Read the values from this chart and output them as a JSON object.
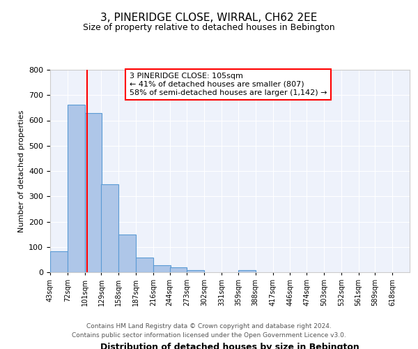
{
  "title": "3, PINERIDGE CLOSE, WIRRAL, CH62 2EE",
  "subtitle": "Size of property relative to detached houses in Bebington",
  "bar_labels": [
    "43sqm",
    "72sqm",
    "101sqm",
    "129sqm",
    "158sqm",
    "187sqm",
    "216sqm",
    "244sqm",
    "273sqm",
    "302sqm",
    "331sqm",
    "359sqm",
    "388sqm",
    "417sqm",
    "446sqm",
    "474sqm",
    "503sqm",
    "532sqm",
    "561sqm",
    "589sqm",
    "618sqm"
  ],
  "bar_values": [
    82,
    663,
    630,
    347,
    148,
    57,
    27,
    18,
    8,
    0,
    0,
    7,
    0,
    0,
    0,
    0,
    0,
    0,
    0,
    0,
    0
  ],
  "bar_color": "#aec6e8",
  "bar_edge_color": "#5b9bd5",
  "property_line_x": 105,
  "property_line_color": "red",
  "xlabel": "Distribution of detached houses by size in Bebington",
  "ylabel": "Number of detached properties",
  "ylim": [
    0,
    800
  ],
  "yticks": [
    0,
    100,
    200,
    300,
    400,
    500,
    600,
    700,
    800
  ],
  "annotation_title": "3 PINERIDGE CLOSE: 105sqm",
  "annotation_line1": "← 41% of detached houses are smaller (807)",
  "annotation_line2": "58% of semi-detached houses are larger (1,142) →",
  "annotation_box_color": "white",
  "annotation_box_edge_color": "red",
  "footnote1": "Contains HM Land Registry data © Crown copyright and database right 2024.",
  "footnote2": "Contains public sector information licensed under the Open Government Licence v3.0.",
  "bin_width": 29,
  "background_color": "#eef2fb"
}
